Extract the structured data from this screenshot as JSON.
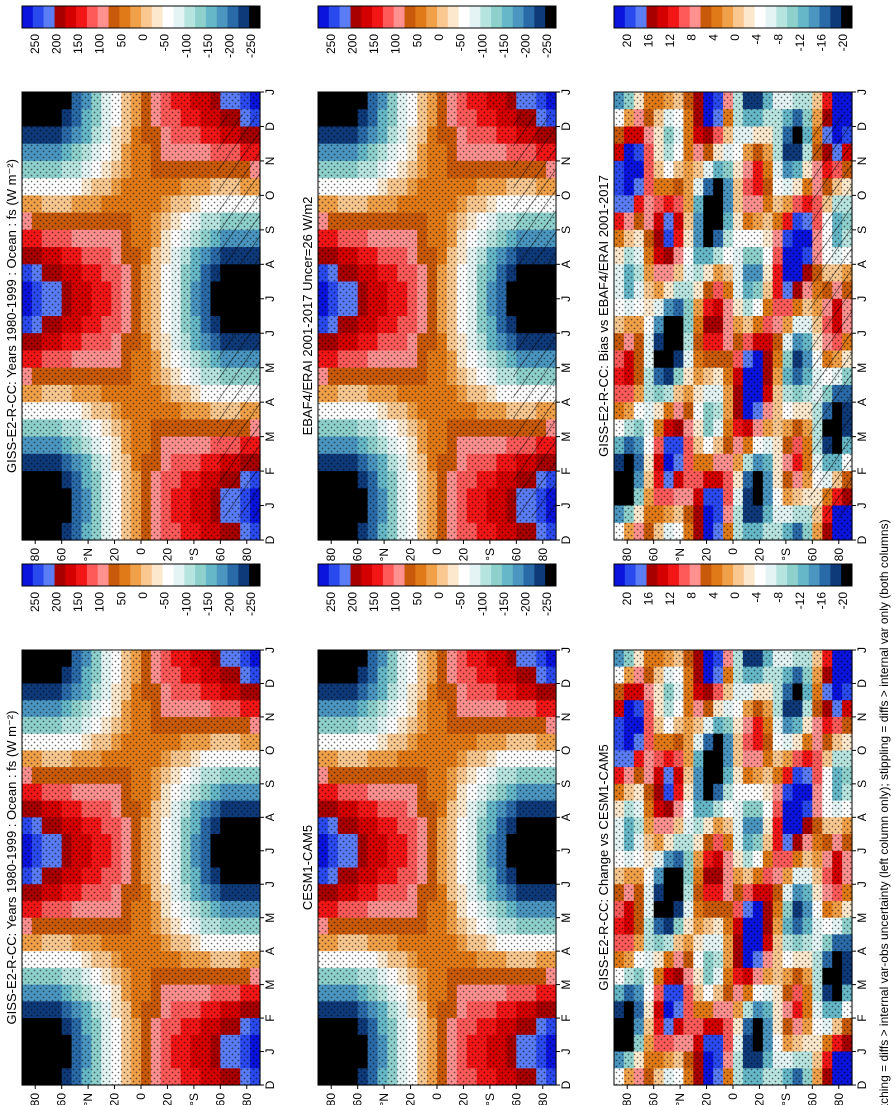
{
  "figure": {
    "footnote": "hatching = diffs > internal var-obs uncertainty (left column only); stippling = diffs > internal var only (both columns)"
  },
  "common": {
    "lat_ticks": [
      "80",
      "60",
      "°N",
      "20",
      "0",
      "20",
      "°S",
      "60",
      "80"
    ],
    "month_ticks": [
      "D",
      "J",
      "F",
      "M",
      "A",
      "M",
      "J",
      "J",
      "A",
      "S",
      "O",
      "N",
      "D",
      "J"
    ]
  },
  "colorbars": {
    "absolute": {
      "labels": [
        "250",
        "200",
        "150",
        "100",
        "50",
        "0",
        "-50",
        "-100",
        "-150",
        "-200",
        "-250"
      ],
      "colors": [
        "#0a14dc",
        "#2a4af0",
        "#5a7cf5",
        "#a80000",
        "#d40000",
        "#f21616",
        "#ff5a5a",
        "#ff9090",
        "#c85a0a",
        "#e07a18",
        "#f0a048",
        "#f8c890",
        "#fce8cc",
        "#ffffff",
        "#e4f4f4",
        "#b8e4e0",
        "#8ed0cc",
        "#66b8c8",
        "#4a96c0",
        "#2a6aa8",
        "#0e3a7a",
        "#000000"
      ]
    },
    "difference": {
      "labels": [
        "20",
        "16",
        "12",
        "8",
        "4",
        "0",
        "-4",
        "-8",
        "-12",
        "-16",
        "-20"
      ],
      "colors": [
        "#0a14dc",
        "#2a4af0",
        "#5a7cf5",
        "#a80000",
        "#d40000",
        "#f21616",
        "#ff5a5a",
        "#ff9090",
        "#c85a0a",
        "#e07a18",
        "#f0a048",
        "#f8c890",
        "#fce8cc",
        "#ffffff",
        "#e4f4f4",
        "#b8e4e0",
        "#8ed0cc",
        "#66b8c8",
        "#4a96c0",
        "#2a6aa8",
        "#0e3a7a",
        "#000000"
      ]
    }
  },
  "chart_data": [
    {
      "type": "heatmap",
      "title": "GISS-E2-R-CC: Years 1980-1999 : Ocean : fs (W m⁻²)",
      "x": "latitude",
      "y": "month",
      "kind": "absolute",
      "hatching": true
    },
    {
      "type": "heatmap",
      "title": "GISS-E2-R-CC: Years 1980-1999 : Ocean : fs (W m⁻²)",
      "x": "latitude",
      "y": "month",
      "kind": "absolute",
      "hatching": false
    },
    {
      "type": "heatmap",
      "title": "EBAF4/ERAI 2001-2017 Uncer=26 W/m2",
      "x": "latitude",
      "y": "month",
      "kind": "absolute",
      "hatching": true
    },
    {
      "type": "heatmap",
      "title": "CESM1-CAM5",
      "x": "latitude",
      "y": "month",
      "kind": "absolute",
      "hatching": false
    },
    {
      "type": "heatmap",
      "title": "GISS-E2-R-CC: Bias vs EBAF4/ERAI 2001-2017",
      "x": "latitude",
      "y": "month",
      "kind": "difference",
      "hatching": true
    },
    {
      "type": "heatmap",
      "title": "GISS-E2-R-CC: Change vs CESM1-CAM5",
      "x": "latitude",
      "y": "month",
      "kind": "difference",
      "hatching": false
    }
  ]
}
